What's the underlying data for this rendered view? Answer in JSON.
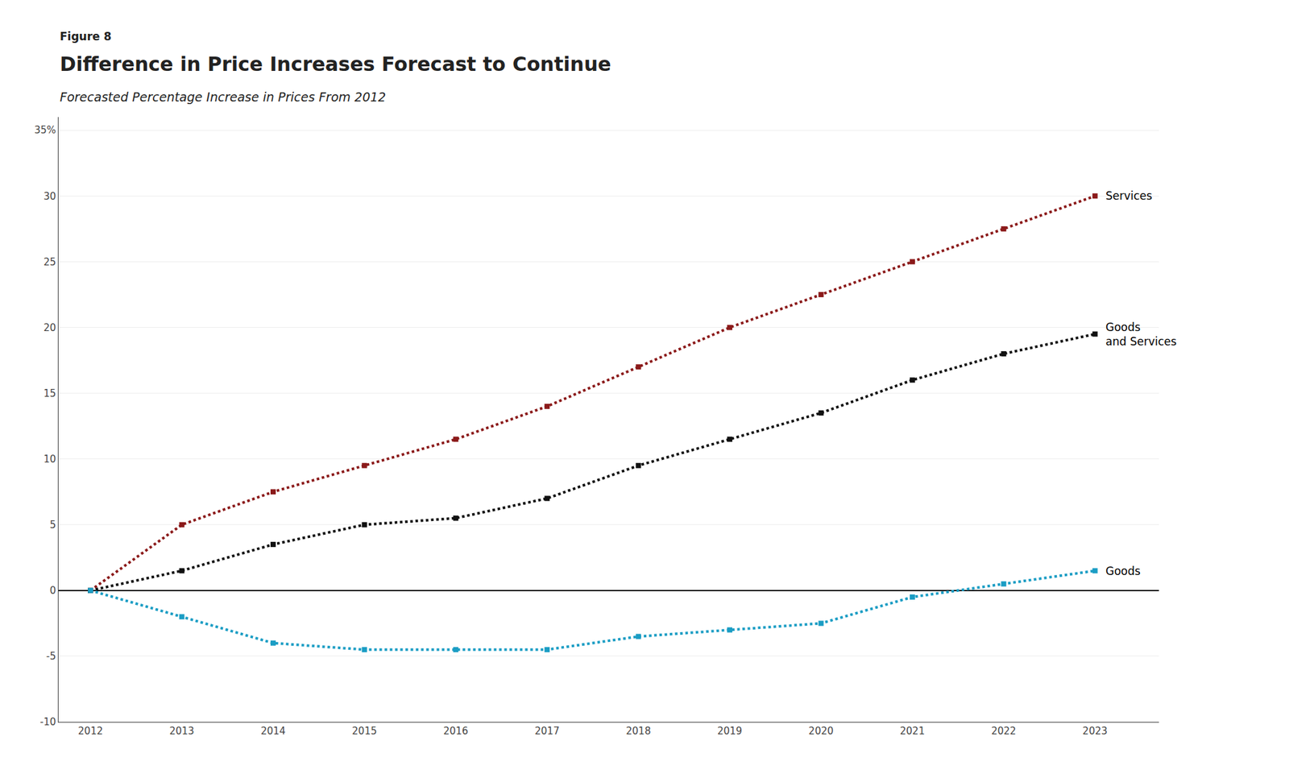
{
  "chart_data": {
    "type": "line",
    "title": "Difference in Price Increases Forecast to Continue",
    "subtitle": "Forecasted Percentage Increase in Prices From 2012",
    "annotations": [
      "Figure 8"
    ],
    "x": [
      2012,
      2013,
      2014,
      2015,
      2016,
      2017,
      2018,
      2019,
      2020,
      2021,
      2022,
      2023
    ],
    "series": [
      {
        "name": "Services",
        "color": "#8B1A1A",
        "marker": "square",
        "line_style": "dotted",
        "values": [
          0,
          5.0,
          7.5,
          9.5,
          11.5,
          14.0,
          17.0,
          20.0,
          22.5,
          25.0,
          27.5,
          30.0
        ]
      },
      {
        "name": "Goods\nand Services",
        "color": "#111111",
        "marker": "square",
        "line_style": "dotted",
        "values": [
          0,
          1.5,
          3.5,
          5.0,
          5.5,
          7.0,
          9.5,
          11.5,
          13.5,
          16.0,
          18.0,
          19.5
        ]
      },
      {
        "name": "Goods",
        "color": "#1B9DC4",
        "marker": "square",
        "line_style": "dotted",
        "values": [
          0,
          -2.0,
          -4.0,
          -4.5,
          -4.5,
          -4.5,
          -3.5,
          -3.0,
          -2.5,
          -0.5,
          0.5,
          1.5
        ]
      }
    ],
    "xlim": [
      2011.65,
      2023.7
    ],
    "xticks": [
      2012,
      2013,
      2014,
      2015,
      2016,
      2017,
      2018,
      2019,
      2020,
      2021,
      2022,
      2023
    ],
    "ylim": [
      -10,
      36
    ],
    "yticks": [
      -10,
      -5,
      0,
      5,
      10,
      15,
      20,
      25,
      30,
      {
        "value": 35,
        "label": "35%"
      }
    ],
    "grid": "y"
  }
}
